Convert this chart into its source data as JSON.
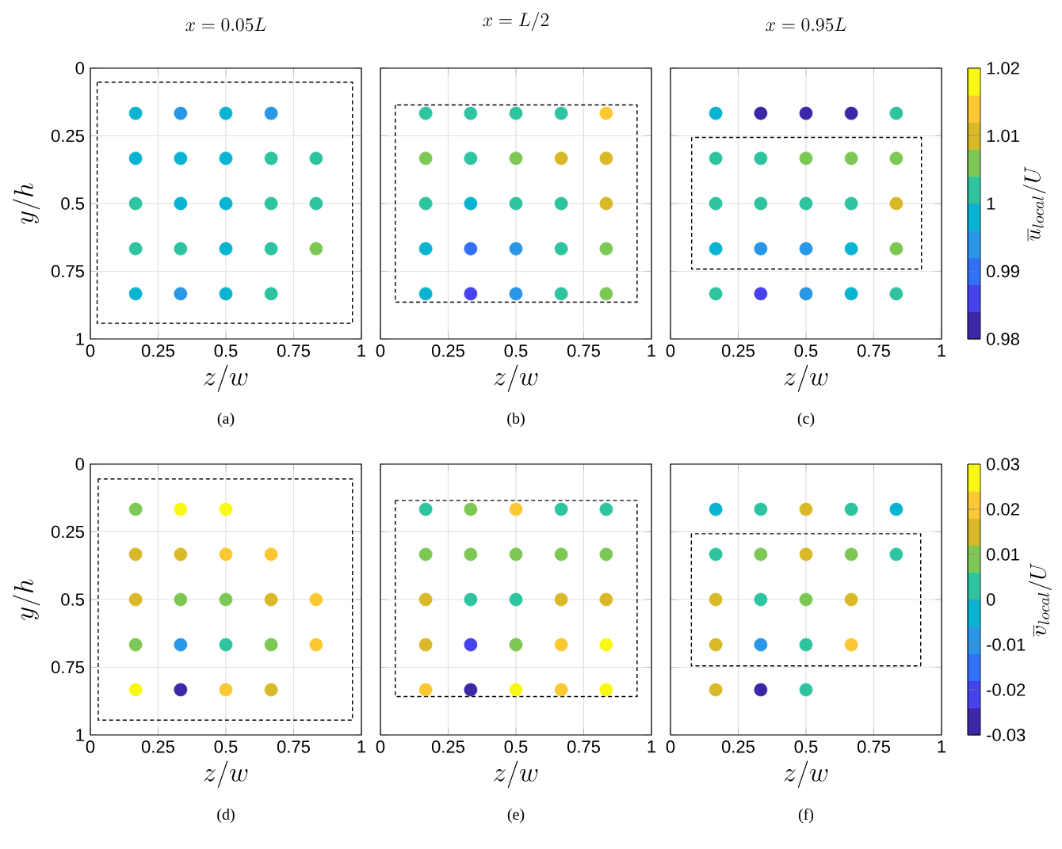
{
  "chart_data": [
    {
      "type": "scatter",
      "title": "x=0.05L",
      "xlabel": "z/w",
      "ylabel": "y/h",
      "annotations": [
        "(a)"
      ],
      "xlim": [
        0,
        1
      ],
      "ylim": [
        1,
        0
      ],
      "xticks": [
        0,
        0.25,
        0.5,
        0.75,
        1
      ],
      "yticks": [
        0,
        0.25,
        0.5,
        0.75,
        1
      ],
      "grid": true,
      "series": [
        {
          "x": [
            0.167,
            0.333,
            0.5,
            0.667,
            0.167,
            0.333,
            0.5,
            0.667,
            0.833,
            0.167,
            0.333,
            0.5,
            0.667,
            0.833,
            0.167,
            0.333,
            0.5,
            0.667,
            0.833,
            0.167,
            0.333,
            0.5,
            0.667
          ],
          "values": [
            0.167,
            0.167,
            0.167,
            0.167,
            0.333,
            0.333,
            0.333,
            0.333,
            0.333,
            0.5,
            0.5,
            0.5,
            0.5,
            0.5,
            0.667,
            0.667,
            0.667,
            0.667,
            0.667,
            0.833,
            0.833,
            0.833,
            0.833
          ],
          "colors": [
            "#08b4d2",
            "#2a96e6",
            "#08b4d2",
            "#2a96e6",
            "#08b4d2",
            "#08b4d2",
            "#08b4d2",
            "#2ec4a0",
            "#2ec4a0",
            "#2ec4a0",
            "#08b4d2",
            "#08b4d2",
            "#2ec4a0",
            "#2ec4a0",
            "#2ec4a0",
            "#2ec4a0",
            "#08b4d2",
            "#2ec4a0",
            "#7dc855",
            "#08b4d2",
            "#2a96e6",
            "#08b4d2",
            "#2ec4a0"
          ]
        }
      ]
    },
    {
      "type": "scatter",
      "title": "x=L/2",
      "xlabel": "z/w",
      "annotations": [
        "(b)"
      ],
      "xlim": [
        0,
        1
      ],
      "ylim": [
        1,
        0
      ],
      "xticks": [
        0,
        0.25,
        0.5,
        0.75,
        1
      ],
      "yticks": [
        0,
        0.25,
        0.5,
        0.75,
        1
      ],
      "grid": true,
      "tick_labels": "x",
      "series": [
        {
          "x": [
            0.167,
            0.333,
            0.5,
            0.667,
            0.833,
            0.167,
            0.333,
            0.5,
            0.667,
            0.833,
            0.167,
            0.333,
            0.5,
            0.667,
            0.833,
            0.167,
            0.333,
            0.5,
            0.667,
            0.833,
            0.167,
            0.333,
            0.5,
            0.667,
            0.833
          ],
          "values": [
            0.167,
            0.167,
            0.167,
            0.167,
            0.167,
            0.333,
            0.333,
            0.333,
            0.333,
            0.333,
            0.5,
            0.5,
            0.5,
            0.5,
            0.5,
            0.667,
            0.667,
            0.667,
            0.667,
            0.667,
            0.833,
            0.833,
            0.833,
            0.833,
            0.833
          ],
          "colors": [
            "#2ec4a0",
            "#2ec4a0",
            "#2ec4a0",
            "#2ec4a0",
            "#fcc832",
            "#7dc855",
            "#2ec4a0",
            "#7dc855",
            "#d9b928",
            "#d9b928",
            "#2ec4a0",
            "#08b4d2",
            "#2ec4a0",
            "#2ec4a0",
            "#d9b928",
            "#08b4d2",
            "#3070f5",
            "#2a96e6",
            "#2ec4a0",
            "#7dc855",
            "#08b4d2",
            "#4642ee",
            "#2a96e6",
            "#2ec4a0",
            "#7dc855"
          ]
        }
      ]
    },
    {
      "type": "scatter",
      "title": "x=0.95L",
      "xlabel": "z/w",
      "clabel": "\\overline{u}_{local}/U",
      "annotations": [
        "(c)"
      ],
      "xlim": [
        0,
        1
      ],
      "ylim": [
        1,
        0
      ],
      "xticks": [
        0,
        0.25,
        0.5,
        0.75,
        1
      ],
      "yticks": [
        0,
        0.25,
        0.5,
        0.75,
        1
      ],
      "grid": true,
      "tick_labels": "x",
      "clim": [
        0.98,
        1.02
      ],
      "cticks": [
        0.98,
        0.99,
        1,
        1.01,
        1.02
      ],
      "series": [
        {
          "x": [
            0.167,
            0.333,
            0.5,
            0.667,
            0.833,
            0.167,
            0.333,
            0.5,
            0.667,
            0.833,
            0.167,
            0.333,
            0.5,
            0.667,
            0.833,
            0.167,
            0.333,
            0.5,
            0.667,
            0.833,
            0.167,
            0.333,
            0.5,
            0.667,
            0.833
          ],
          "values": [
            0.167,
            0.167,
            0.167,
            0.167,
            0.167,
            0.333,
            0.333,
            0.333,
            0.333,
            0.333,
            0.5,
            0.5,
            0.5,
            0.5,
            0.5,
            0.667,
            0.667,
            0.667,
            0.667,
            0.667,
            0.833,
            0.833,
            0.833,
            0.833,
            0.833
          ],
          "colors": [
            "#08b4d2",
            "#3e26a8",
            "#3e26a8",
            "#3e26a8",
            "#2ec4a0",
            "#2ec4a0",
            "#2ec4a0",
            "#7dc855",
            "#7dc855",
            "#7dc855",
            "#2ec4a0",
            "#2ec4a0",
            "#2ec4a0",
            "#2ec4a0",
            "#d9b928",
            "#08b4d2",
            "#2a96e6",
            "#2a96e6",
            "#08b4d2",
            "#7dc855",
            "#2ec4a0",
            "#4642ee",
            "#2a96e6",
            "#08b4d2",
            "#2ec4a0"
          ]
        }
      ]
    },
    {
      "type": "scatter",
      "xlabel": "z/w",
      "ylabel": "y/h",
      "annotations": [
        "(d)"
      ],
      "xlim": [
        0,
        1
      ],
      "ylim": [
        1,
        0
      ],
      "xticks": [
        0,
        0.25,
        0.5,
        0.75,
        1
      ],
      "yticks": [
        0,
        0.25,
        0.5,
        0.75,
        1
      ],
      "grid": true,
      "series": [
        {
          "x": [
            0.167,
            0.333,
            0.5,
            0.167,
            0.333,
            0.5,
            0.667,
            0.167,
            0.333,
            0.5,
            0.667,
            0.833,
            0.167,
            0.333,
            0.5,
            0.667,
            0.833,
            0.167,
            0.333,
            0.5,
            0.667
          ],
          "values": [
            0.167,
            0.167,
            0.167,
            0.333,
            0.333,
            0.333,
            0.333,
            0.5,
            0.5,
            0.5,
            0.5,
            0.5,
            0.667,
            0.667,
            0.667,
            0.667,
            0.667,
            0.833,
            0.833,
            0.833,
            0.833
          ],
          "colors": [
            "#7dc855",
            "#f8f814",
            "#f8f814",
            "#d9b928",
            "#d9b928",
            "#fcc832",
            "#fcc832",
            "#d9b928",
            "#7dc855",
            "#7dc855",
            "#d9b928",
            "#fcc832",
            "#7dc855",
            "#2a96e6",
            "#2ec4a0",
            "#7dc855",
            "#fcc832",
            "#f8f814",
            "#3e26a8",
            "#fcc832",
            "#d9b928"
          ]
        }
      ]
    },
    {
      "type": "scatter",
      "xlabel": "z/w",
      "annotations": [
        "(e)"
      ],
      "xlim": [
        0,
        1
      ],
      "ylim": [
        1,
        0
      ],
      "xticks": [
        0,
        0.25,
        0.5,
        0.75,
        1
      ],
      "yticks": [
        0,
        0.25,
        0.5,
        0.75,
        1
      ],
      "grid": true,
      "tick_labels": "x",
      "series": [
        {
          "x": [
            0.167,
            0.333,
            0.5,
            0.667,
            0.833,
            0.167,
            0.333,
            0.5,
            0.667,
            0.833,
            0.167,
            0.333,
            0.5,
            0.667,
            0.833,
            0.167,
            0.333,
            0.5,
            0.667,
            0.833,
            0.167,
            0.333,
            0.5,
            0.667,
            0.833
          ],
          "values": [
            0.167,
            0.167,
            0.167,
            0.167,
            0.167,
            0.333,
            0.333,
            0.333,
            0.333,
            0.333,
            0.5,
            0.5,
            0.5,
            0.5,
            0.5,
            0.667,
            0.667,
            0.667,
            0.667,
            0.667,
            0.833,
            0.833,
            0.833,
            0.833,
            0.833
          ],
          "colors": [
            "#2ec4a0",
            "#7dc855",
            "#fcc832",
            "#2ec4a0",
            "#2ec4a0",
            "#7dc855",
            "#7dc855",
            "#7dc855",
            "#7dc855",
            "#7dc855",
            "#d9b928",
            "#2ec4a0",
            "#2ec4a0",
            "#d9b928",
            "#d9b928",
            "#d9b928",
            "#4642ee",
            "#7dc855",
            "#fcc832",
            "#f8f814",
            "#fcc832",
            "#3e26a8",
            "#f8f814",
            "#fcc832",
            "#f8f814"
          ]
        }
      ]
    },
    {
      "type": "scatter",
      "xlabel": "z/w",
      "clabel": "\\overline{v}_{local}/U",
      "annotations": [
        "(f)"
      ],
      "xlim": [
        0,
        1
      ],
      "ylim": [
        1,
        0
      ],
      "xticks": [
        0,
        0.25,
        0.5,
        0.75,
        1
      ],
      "yticks": [
        0,
        0.25,
        0.5,
        0.75,
        1
      ],
      "grid": true,
      "tick_labels": "x",
      "clim": [
        -0.03,
        0.03
      ],
      "cticks": [
        -0.03,
        -0.02,
        -0.01,
        0,
        0.01,
        0.02,
        0.03
      ],
      "series": [
        {
          "x": [
            0.167,
            0.333,
            0.5,
            0.667,
            0.833,
            0.167,
            0.333,
            0.5,
            0.667,
            0.833,
            0.167,
            0.333,
            0.5,
            0.667,
            0.167,
            0.333,
            0.5,
            0.667,
            0.167,
            0.333,
            0.5
          ],
          "values": [
            0.167,
            0.167,
            0.167,
            0.167,
            0.167,
            0.333,
            0.333,
            0.333,
            0.333,
            0.333,
            0.5,
            0.5,
            0.5,
            0.5,
            0.667,
            0.667,
            0.667,
            0.667,
            0.833,
            0.833,
            0.833
          ],
          "colors": [
            "#08b4d2",
            "#2ec4a0",
            "#d9b928",
            "#2ec4a0",
            "#08b4d2",
            "#2ec4a0",
            "#7dc855",
            "#d9b928",
            "#7dc855",
            "#2ec4a0",
            "#d9b928",
            "#2ec4a0",
            "#7dc855",
            "#d9b928",
            "#d9b928",
            "#2a96e6",
            "#2ec4a0",
            "#fcc832",
            "#d9b928",
            "#3e26a8",
            "#2ec4a0"
          ]
        }
      ]
    }
  ]
}
